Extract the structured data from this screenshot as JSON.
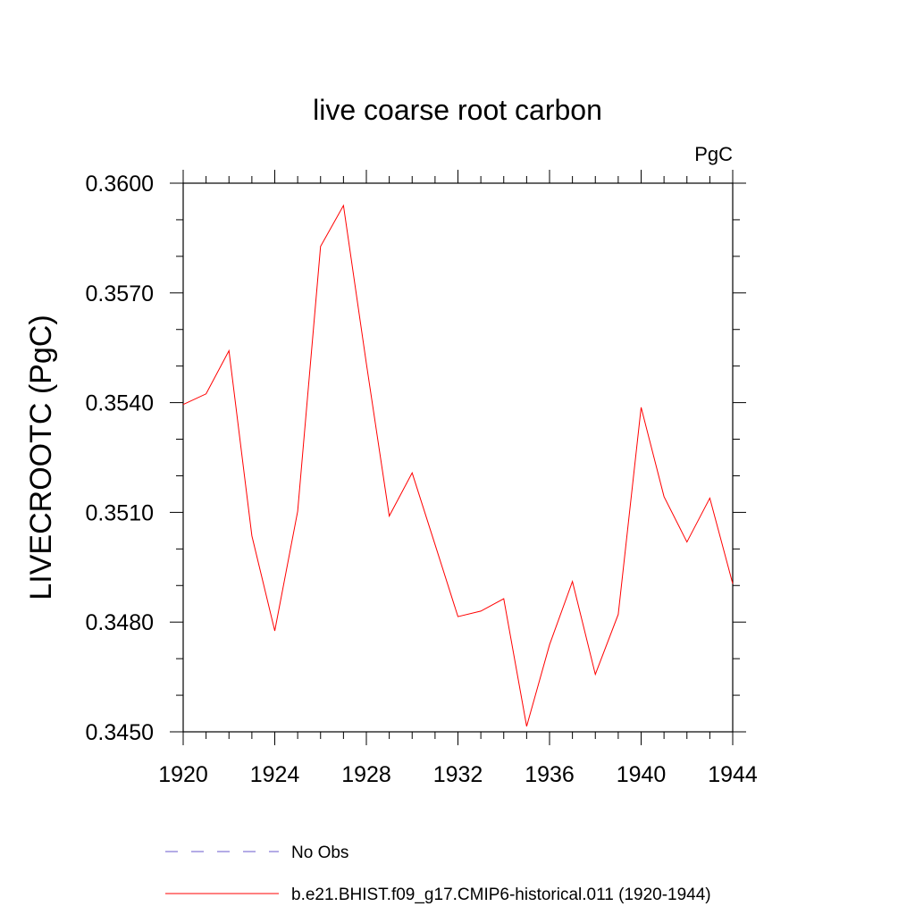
{
  "chart_data": {
    "type": "line",
    "title": "live coarse root carbon",
    "units": "PgC",
    "ylabel": "LIVECROOTC  (PgC)",
    "xlabel": "",
    "xlim": [
      1920,
      1944
    ],
    "ylim": [
      0.345,
      0.36
    ],
    "x_ticks": [
      1920,
      1924,
      1928,
      1932,
      1936,
      1940,
      1944
    ],
    "x_tick_labels": [
      "1920",
      "1924",
      "1928",
      "1932",
      "1936",
      "1940",
      "1944"
    ],
    "y_ticks": [
      0.345,
      0.348,
      0.351,
      0.354,
      0.357,
      0.36
    ],
    "y_tick_labels": [
      "0.3450",
      "0.3480",
      "0.3510",
      "0.3540",
      "0.3570",
      "0.3600"
    ],
    "y_minor_step": 0.001,
    "grid": false,
    "legend_placement": "bottom",
    "series": [
      {
        "name": "b.e21.BHIST.f09_g17.CMIP6-historical.011 (1920-1944)",
        "color": "#ff0000",
        "style": "solid",
        "x": [
          1920,
          1921,
          1922,
          1923,
          1924,
          1925,
          1926,
          1927,
          1928,
          1929,
          1930,
          1931,
          1932,
          1933,
          1934,
          1935,
          1936,
          1937,
          1938,
          1939,
          1940,
          1941,
          1942,
          1943,
          1944
        ],
        "y": [
          0.35395,
          0.35424,
          0.35542,
          0.35036,
          0.34776,
          0.35103,
          0.35827,
          0.35939,
          0.35507,
          0.3509,
          0.35208,
          0.35012,
          0.34815,
          0.3483,
          0.34864,
          0.34515,
          0.34738,
          0.34911,
          0.34657,
          0.34821,
          0.35387,
          0.35143,
          0.35019,
          0.35139,
          0.34905
        ]
      }
    ],
    "legend": [
      {
        "label": "No Obs",
        "color": "#6a5acd",
        "style": "dashed"
      },
      {
        "label": "b.e21.BHIST.f09_g17.CMIP6-historical.011 (1920-1944)",
        "color": "#ff0000",
        "style": "solid"
      }
    ]
  }
}
